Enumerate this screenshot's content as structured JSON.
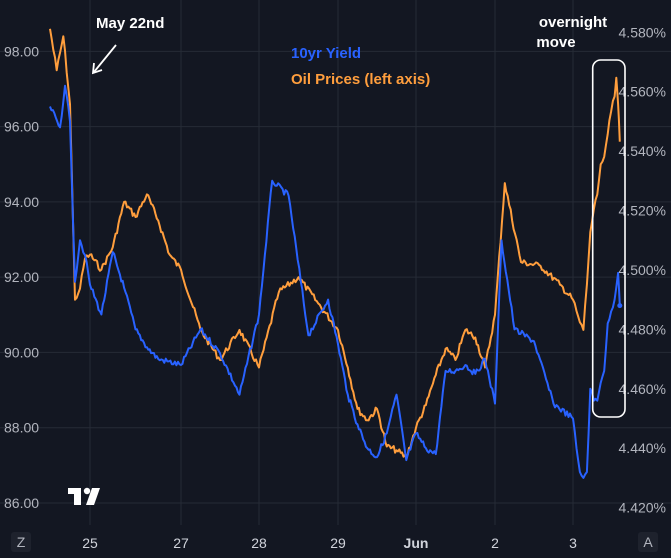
{
  "chart_data": {
    "type": "line",
    "legend_placement": "top-center",
    "grid": true,
    "x_ticks": [
      "25",
      "27",
      "28",
      "29",
      "Jun",
      "2",
      "3"
    ],
    "left_axis": {
      "range": [
        85.6,
        99.1
      ],
      "ticks": [
        "98.00",
        "96.00",
        "94.00",
        "92.00",
        "90.00",
        "88.00",
        "86.00"
      ]
    },
    "right_axis": {
      "range": [
        4.4165,
        4.5875
      ],
      "ticks": [
        "4.580%",
        "4.560%",
        "4.540%",
        "4.520%",
        "4.500%",
        "4.480%",
        "4.460%",
        "4.440%",
        "4.420%"
      ]
    },
    "series": [
      {
        "name": "10yr Yield",
        "axis": "right",
        "color": "#2962ff",
        "points": [
          [
            "May 23 00:00",
            4.555
          ],
          [
            "May 23 12:00",
            4.548
          ],
          [
            "May 23 18:00",
            4.562
          ],
          [
            "May 24 00:00",
            4.55
          ],
          [
            "May 24 06:00",
            4.496
          ],
          [
            "May 24 12:00",
            4.51
          ],
          [
            "May 24 18:00",
            4.505
          ],
          [
            "May 25 00:00",
            4.495
          ],
          [
            "May 25 06:00",
            4.485
          ],
          [
            "May 25 12:00",
            4.506
          ],
          [
            "May 25 18:00",
            4.494
          ],
          [
            "May 26 00:00",
            4.48
          ],
          [
            "May 26 06:00",
            4.474
          ],
          [
            "May 26 12:00",
            4.47
          ],
          [
            "May 27 00:00",
            4.468
          ],
          [
            "May 27 06:00",
            4.48
          ],
          [
            "May 27 12:00",
            4.472
          ],
          [
            "May 27 18:00",
            4.458
          ],
          [
            "May 28 00:00",
            4.485
          ],
          [
            "May 28 04:00",
            4.53
          ],
          [
            "May 28 09:00",
            4.525
          ],
          [
            "May 28 15:00",
            4.478
          ],
          [
            "May 28 21:00",
            4.49
          ],
          [
            "May 29 00:00",
            4.475
          ],
          [
            "May 29 06:00",
            4.458
          ],
          [
            "May 29 12:00",
            4.448
          ],
          [
            "May 29 18:00",
            4.44
          ],
          [
            "May 30 00:00",
            4.437
          ],
          [
            "May 30 06:00",
            4.445
          ],
          [
            "May 30 12:00",
            4.458
          ],
          [
            "May 30 18:00",
            4.436
          ],
          [
            "May 31 00:00",
            4.445
          ],
          [
            "May 31 06:00",
            4.44
          ],
          [
            "May 31 12:00",
            4.438
          ],
          [
            "May 31 18:00",
            4.466
          ],
          [
            "Jun 1 00:00",
            4.466
          ],
          [
            "Jun 1 06:00",
            4.468
          ],
          [
            "Jun 1 12:00",
            4.465
          ],
          [
            "Jun 1 18:00",
            4.47
          ],
          [
            "Jun 2 00:00",
            4.455
          ],
          [
            "Jun 2 02:00",
            4.51
          ],
          [
            "Jun 2 06:00",
            4.48
          ],
          [
            "Jun 2 12:00",
            4.476
          ],
          [
            "Jun 2 18:00",
            4.455
          ],
          [
            "Jun 3 00:00",
            4.45
          ],
          [
            "Jun 3 06:00",
            4.44
          ],
          [
            "Jun 3 12:00",
            4.432
          ],
          [
            "Jun 3 18:00",
            4.43
          ],
          [
            "Jun 4 00:00",
            4.432
          ],
          [
            "Jun 4 06:00",
            4.46
          ],
          [
            "Jun 4 12:00",
            4.456
          ],
          [
            "Jun 4 18:00",
            4.456
          ],
          [
            "Jun 5 00:00",
            4.462
          ],
          [
            "Jun 5 06:00",
            4.466
          ],
          [
            "Jun 5 12:00",
            4.482
          ],
          [
            "Jun 5 18:00",
            4.486
          ],
          [
            "Jun 6 00:00",
            4.49
          ],
          [
            "Jun 6 06:00",
            4.499
          ],
          [
            "Jun 6 09:00",
            4.488
          ]
        ]
      },
      {
        "name": "Oil Prices (left axis)",
        "axis": "left",
        "color": "#ff9e3d",
        "points": [
          [
            "May 23 00:00",
            98.6
          ],
          [
            "May 23 08:00",
            97.5
          ],
          [
            "May 23 16:00",
            98.4
          ],
          [
            "May 24 00:00",
            96.6
          ],
          [
            "May 24 06:00",
            91.4
          ],
          [
            "May 24 12:00",
            91.7
          ],
          [
            "May 24 18:00",
            92.5
          ],
          [
            "May 25 00:00",
            92.6
          ],
          [
            "May 25 06:00",
            92.2
          ],
          [
            "May 25 12:00",
            92.8
          ],
          [
            "May 25 18:00",
            94.0
          ],
          [
            "May 26 00:00",
            93.6
          ],
          [
            "May 26 06:00",
            94.2
          ],
          [
            "May 26 12:00",
            93.5
          ],
          [
            "May 26 18:00",
            92.6
          ],
          [
            "May 27 00:00",
            92.2
          ],
          [
            "May 27 06:00",
            90.6
          ],
          [
            "May 27 12:00",
            89.8
          ],
          [
            "May 27 18:00",
            90.6
          ],
          [
            "May 28 00:00",
            89.6
          ],
          [
            "May 28 06:00",
            91.6
          ],
          [
            "May 28 12:00",
            92.0
          ],
          [
            "May 28 18:00",
            91.3
          ],
          [
            "May 29 00:00",
            90.6
          ],
          [
            "May 29 06:00",
            89.6
          ],
          [
            "May 29 12:00",
            88.5
          ],
          [
            "May 29 18:00",
            88.2
          ],
          [
            "May 30 00:00",
            88.5
          ],
          [
            "May 30 06:00",
            87.5
          ],
          [
            "May 30 12:00",
            87.4
          ],
          [
            "May 30 18:00",
            87.2
          ],
          [
            "May 31 00:00",
            88.0
          ],
          [
            "May 31 06:00",
            88.6
          ],
          [
            "May 31 12:00",
            89.4
          ],
          [
            "May 31 18:00",
            90.1
          ],
          [
            "Jun 1 00:00",
            89.8
          ],
          [
            "Jun 1 06:00",
            90.6
          ],
          [
            "Jun 1 12:00",
            90.4
          ],
          [
            "Jun 1 18:00",
            89.6
          ],
          [
            "Jun 2 00:00",
            91.0
          ],
          [
            "Jun 2 03:00",
            94.5
          ],
          [
            "Jun 2 08:00",
            92.4
          ],
          [
            "Jun 2 14:00",
            92.3
          ],
          [
            "Jun 2 20:00",
            91.8
          ],
          [
            "Jun 3 00:00",
            91.4
          ],
          [
            "Jun 3 06:00",
            91.1
          ],
          [
            "Jun 3 12:00",
            90.8
          ],
          [
            "Jun 3 18:00",
            90.6
          ],
          [
            "Jun 4 00:00",
            91.8
          ],
          [
            "Jun 4 06:00",
            93.2
          ],
          [
            "Jun 4 12:00",
            93.8
          ],
          [
            "Jun 4 18:00",
            94.2
          ],
          [
            "Jun 5 00:00",
            95.0
          ],
          [
            "Jun 5 06:00",
            95.2
          ],
          [
            "Jun 5 12:00",
            95.8
          ],
          [
            "Jun 5 18:00",
            96.4
          ],
          [
            "Jun 6 00:00",
            96.8
          ],
          [
            "Jun 6 03:00",
            97.3
          ],
          [
            "Jun 6 06:00",
            96.6
          ],
          [
            "Jun 6 09:00",
            95.6
          ]
        ]
      }
    ],
    "annotations": {
      "arrow_label": "May 22nd",
      "box_label_line1": "overnight",
      "box_label_line2": "move",
      "box_start": "Jun 5 00:00",
      "box_end": "Jun 6 18:00"
    },
    "colors": {
      "background": "#131722",
      "grid": "#262b36",
      "axis_text": "#b2b5be",
      "annotation": "#ffffff"
    },
    "footer": {
      "left_button": "Z",
      "right_button": "A"
    }
  }
}
